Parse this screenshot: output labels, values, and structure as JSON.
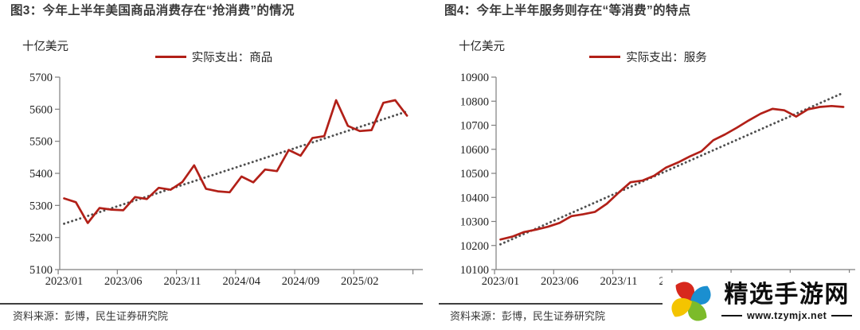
{
  "panels": [
    {
      "title": "图3：今年上半年美国商品消费存在“抢消费”的情况",
      "unit_label": "十亿美元",
      "legend_label": "实际支出：商品",
      "source_note": "资料来源：彭博，民生证券研究院"
    },
    {
      "title": "图4：今年上半年服务则存在“等消费”的特点",
      "unit_label": "十亿美元",
      "legend_label": "实际支出：服务",
      "source_note": "资料来源：彭博，民生证券研究院"
    }
  ],
  "watermark": {
    "site_name": "精选手游网",
    "site_url": "www.tzymjx.net",
    "logo_colors": [
      "#d7281d",
      "#1b8fd0",
      "#7cbb2a",
      "#f4c400"
    ]
  },
  "chart_data": [
    {
      "type": "line",
      "title": "图3：今年上半年美国商品消费存在“抢消费”的情况",
      "ylabel": "十亿美元",
      "legend": [
        "实际支出：商品"
      ],
      "ylim": [
        5100,
        5700
      ],
      "ytick_step": 100,
      "grid": false,
      "legend_position": "top",
      "x": [
        "2023/01",
        "2023/02",
        "2023/03",
        "2023/04",
        "2023/05",
        "2023/06",
        "2023/07",
        "2023/08",
        "2023/09",
        "2023/10",
        "2023/11",
        "2023/12",
        "2024/01",
        "2024/02",
        "2024/03",
        "2024/04",
        "2024/05",
        "2024/06",
        "2024/07",
        "2024/08",
        "2024/09",
        "2024/10",
        "2024/11",
        "2024/12",
        "2025/01",
        "2025/02",
        "2025/03",
        "2025/04",
        "2025/05",
        "2025/06"
      ],
      "x_tick_labels": [
        "2023/01",
        "2023/06",
        "2023/11",
        "2024/04",
        "2024/09",
        "2025/02"
      ],
      "series": [
        {
          "name": "实际支出：商品",
          "color": "#b22018",
          "values": [
            5322,
            5310,
            5245,
            5292,
            5287,
            5285,
            5326,
            5320,
            5355,
            5349,
            5373,
            5425,
            5352,
            5344,
            5341,
            5390,
            5372,
            5412,
            5407,
            5473,
            5455,
            5510,
            5516,
            5628,
            5548,
            5532,
            5535,
            5620,
            5628,
            5580
          ]
        }
      ],
      "trend": {
        "name": "linear-trend",
        "style": "dotted",
        "color": "#4f4f4f",
        "start": 5243,
        "end": 5593
      }
    },
    {
      "type": "line",
      "title": "图4：今年上半年服务则存在“等消费”的特点",
      "ylabel": "十亿美元",
      "legend": [
        "实际支出：服务"
      ],
      "ylim": [
        10100,
        10900
      ],
      "ytick_step": 100,
      "grid": false,
      "legend_position": "top",
      "x": [
        "2023/01",
        "2023/02",
        "2023/03",
        "2023/04",
        "2023/05",
        "2023/06",
        "2023/07",
        "2023/08",
        "2023/09",
        "2023/10",
        "2023/11",
        "2023/12",
        "2024/01",
        "2024/02",
        "2024/03",
        "2024/04",
        "2024/05",
        "2024/06",
        "2024/07",
        "2024/08",
        "2024/09",
        "2024/10",
        "2024/11",
        "2024/12",
        "2025/01",
        "2025/02",
        "2025/03",
        "2025/04",
        "2025/05",
        "2025/06"
      ],
      "x_tick_labels": [
        "2023/01",
        "2023/06",
        "2023/11",
        "2024/04",
        "2024/09",
        "2025/02"
      ],
      "series": [
        {
          "name": "实际支出：服务",
          "color": "#b22018",
          "values": [
            10225,
            10237,
            10256,
            10266,
            10278,
            10294,
            10322,
            10330,
            10340,
            10374,
            10420,
            10463,
            10470,
            10490,
            10524,
            10545,
            10570,
            10592,
            10638,
            10662,
            10690,
            10720,
            10748,
            10768,
            10762,
            10736,
            10766,
            10776,
            10780,
            10776
          ]
        }
      ],
      "trend": {
        "name": "linear-trend",
        "style": "dotted",
        "color": "#4f4f4f",
        "start": 10205,
        "end": 10835
      }
    }
  ]
}
